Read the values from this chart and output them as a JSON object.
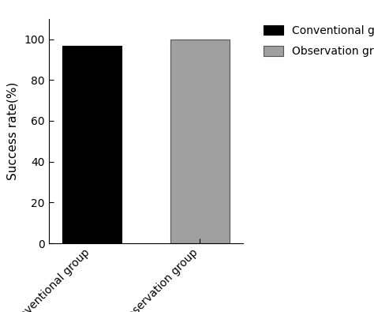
{
  "categories": [
    "Conventional group",
    "Observation group"
  ],
  "values": [
    96.7,
    100.0
  ],
  "bar_colors": [
    "#000000",
    "#a0a0a0"
  ],
  "bar_edgecolors": [
    "#000000",
    "#555555"
  ],
  "ylabel": "Success rate(%)",
  "ylim": [
    0,
    110
  ],
  "yticks": [
    0,
    20,
    40,
    60,
    80,
    100
  ],
  "bar_width": 0.55,
  "legend_labels": [
    "Conventional group",
    "Observation group"
  ],
  "legend_colors": [
    "#000000",
    "#a0a0a0"
  ],
  "background_color": "#ffffff",
  "tick_label_fontsize": 10,
  "ylabel_fontsize": 11,
  "legend_fontsize": 10,
  "spine_color": "#000000",
  "x_positions": [
    0.7,
    1.7
  ]
}
